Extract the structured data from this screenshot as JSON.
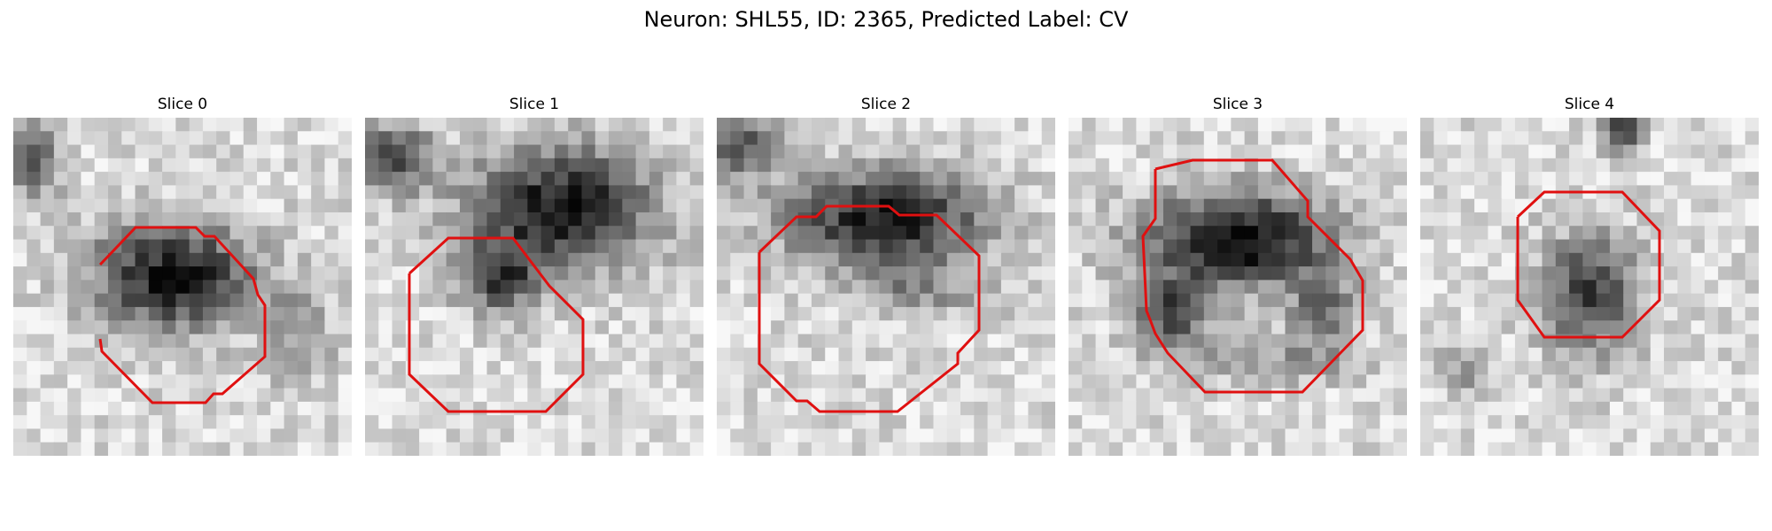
{
  "figure": {
    "title": "Neuron: SHL55, ID: 2365, Predicted Label: CV"
  },
  "panels": [
    {
      "title": "Slice 0"
    },
    {
      "title": "Slice 1"
    },
    {
      "title": "Slice 2"
    },
    {
      "title": "Slice 3"
    },
    {
      "title": "Slice 4"
    }
  ],
  "colors": {
    "contour": "#e01010"
  }
}
